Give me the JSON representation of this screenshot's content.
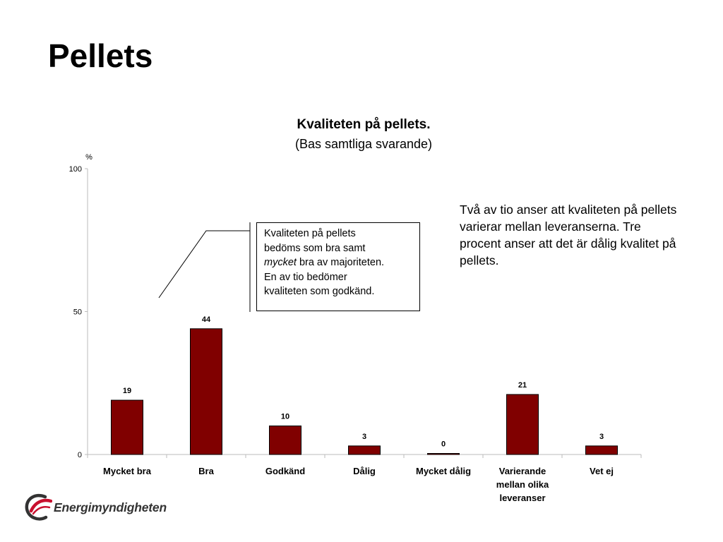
{
  "slide": {
    "title": "Pellets"
  },
  "callout": {
    "line1": "Kvaliteten på pellets",
    "line2": "bedöms som bra samt",
    "line3_emph": "mycket",
    "line3_rest": " bra av majoriteten.",
    "line4": "En av tio bedömer",
    "line5": "kvaliteten som godkänd."
  },
  "side_note": {
    "text": "Två av tio anser att kvaliteten på pellets varierar mellan leveranserna. Tre procent anser att det är dålig kvalitet på pellets."
  },
  "logo": {
    "text": "Energimyndigheten",
    "icon": "energimyndigheten-swirl-icon",
    "colors": {
      "red": "#c8102e",
      "grey": "#333333"
    }
  },
  "chart_data": {
    "type": "bar",
    "title": "Kvaliteten på pellets.",
    "subtitle": "(Bas samtliga svarande)",
    "ylabel": "%",
    "ylim": [
      0,
      100
    ],
    "yticks": [
      0,
      50,
      100
    ],
    "grid": false,
    "categories": [
      [
        "Mycket bra"
      ],
      [
        "Bra"
      ],
      [
        "Godkänd"
      ],
      [
        "Dålig"
      ],
      [
        "Mycket dålig"
      ],
      [
        "Varierande",
        "mellan olika",
        "leveranser"
      ],
      [
        "Vet ej"
      ]
    ],
    "values": [
      19,
      44,
      10,
      3,
      0,
      21,
      3
    ],
    "data_labels": [
      "19",
      "44",
      "10",
      "3",
      "0",
      "21",
      "3"
    ],
    "bar_color": "#800000"
  }
}
